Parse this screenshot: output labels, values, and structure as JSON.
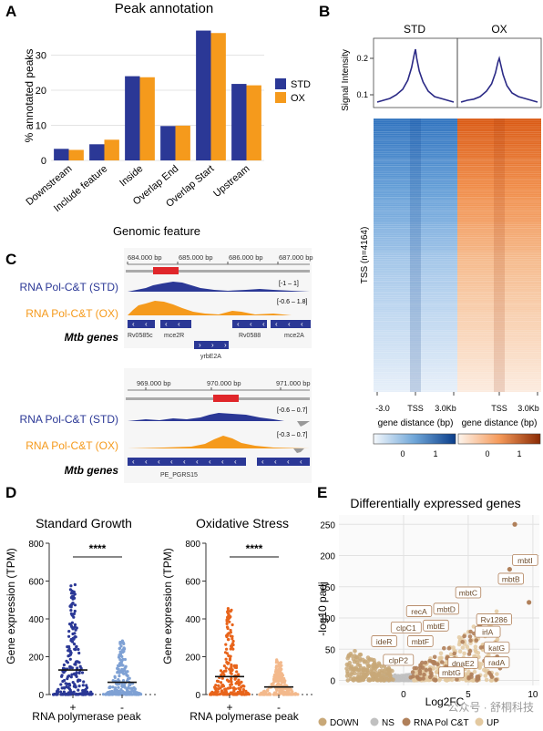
{
  "panels": [
    "A",
    "B",
    "C",
    "D",
    "E"
  ],
  "colors": {
    "std": "#2b3896",
    "ox": "#f59a1c",
    "std_light": "#7fa1d4",
    "ox_light": "#f3b98c",
    "ox_dark": "#e8641b",
    "down": "#c8a878",
    "ns": "#c0c0c0",
    "rnapol": "#b0805a",
    "up": "#e3c9a0",
    "red_box": "#e0262a"
  },
  "chart_data": [
    {
      "panel": "A",
      "type": "bar",
      "title": "Peak annotation",
      "xlabel": "Genomic feature",
      "ylabel": "% annotated peaks",
      "ylim": [
        0,
        40
      ],
      "yticks": [
        "0",
        "10",
        "20",
        "30"
      ],
      "yticks_num": [
        0,
        10,
        20,
        30
      ],
      "categories": [
        "Downstream",
        "Include feature",
        "Inside",
        "Overlap End",
        "Overlap Start",
        "Upstream"
      ],
      "series": [
        {
          "name": "STD",
          "values": [
            3.3,
            4.6,
            24.0,
            9.8,
            37.0,
            21.8
          ]
        },
        {
          "name": "OX",
          "values": [
            3.0,
            5.9,
            23.7,
            9.9,
            36.3,
            21.4
          ]
        }
      ],
      "legend": "right"
    },
    {
      "panel": "B",
      "type": "line",
      "ylabel": "Signal Intensity",
      "yticks": [
        "0.1",
        "0.2"
      ],
      "yticks_num": [
        0.1,
        0.2
      ],
      "ylim": [
        0.07,
        0.25
      ],
      "facets": [
        "STD",
        "OX"
      ],
      "heatmap_label": "TSS (n=4164)",
      "xticks": [
        "-3.0",
        "TSS",
        "3.0Kb"
      ],
      "xlabel": "gene distance (bp)",
      "colorbar_ticks": [
        "0",
        "1"
      ],
      "x": [
        -3.0,
        -2.5,
        -2.0,
        -1.5,
        -1.0,
        -0.6,
        -0.3,
        -0.1,
        0.0,
        0.1,
        0.3,
        0.6,
        1.0,
        1.5,
        2.0,
        2.5,
        3.0
      ],
      "series": [
        {
          "name": "STD",
          "values": [
            0.08,
            0.085,
            0.09,
            0.1,
            0.115,
            0.14,
            0.175,
            0.21,
            0.225,
            0.2,
            0.165,
            0.135,
            0.11,
            0.095,
            0.09,
            0.085,
            0.08
          ]
        },
        {
          "name": "OX",
          "values": [
            0.08,
            0.085,
            0.088,
            0.095,
            0.11,
            0.13,
            0.16,
            0.19,
            0.2,
            0.185,
            0.155,
            0.125,
            0.105,
            0.095,
            0.09,
            0.085,
            0.08
          ]
        }
      ]
    },
    {
      "panel": "D",
      "type": "scatter",
      "ylabel": "Gene expression (TPM)",
      "xlabel": "RNA polymerase peak",
      "yticks": [
        "0",
        "200",
        "400",
        "600",
        "800"
      ],
      "yticks_num": [
        0,
        200,
        400,
        600,
        800
      ],
      "ylim": [
        0,
        800
      ],
      "plots": [
        {
          "title": "Standard Growth",
          "groups": [
            "+",
            "-"
          ],
          "medians": [
            130,
            65
          ],
          "max": [
            590,
            285
          ],
          "significance": "****"
        },
        {
          "title": "Oxidative Stress",
          "groups": [
            "+",
            "-"
          ],
          "medians": [
            95,
            40
          ],
          "max": [
            460,
            185
          ],
          "significance": "****"
        }
      ]
    },
    {
      "panel": "E",
      "type": "scatter",
      "title": "Differentially expressed genes",
      "xlabel": "Log2FC",
      "ylabel": "-log10 padj",
      "xticks": [
        "0",
        "5",
        "10"
      ],
      "xticks_num": [
        0,
        5,
        10
      ],
      "yticks": [
        "0",
        "50",
        "100",
        "150",
        "200",
        "250"
      ],
      "yticks_num": [
        0,
        50,
        100,
        150,
        200,
        250
      ],
      "xlim": [
        -5,
        10.5
      ],
      "ylim": [
        -8,
        265
      ],
      "legend": [
        "DOWN",
        "NS",
        "RNA Pol C&T",
        "UP"
      ],
      "labels": [
        {
          "text": "mbtI",
          "x": 9.4,
          "y": 190
        },
        {
          "text": "mbtB",
          "x": 8.3,
          "y": 160
        },
        {
          "text": "mbtC",
          "x": 5.0,
          "y": 138
        },
        {
          "text": "Rv1286",
          "x": 7.0,
          "y": 95
        },
        {
          "text": "recA",
          "x": 1.2,
          "y": 108
        },
        {
          "text": "mbtD",
          "x": 3.3,
          "y": 112
        },
        {
          "text": "mbtE",
          "x": 2.5,
          "y": 85
        },
        {
          "text": "clpC1",
          "x": 0.2,
          "y": 82
        },
        {
          "text": "ideR",
          "x": -1.5,
          "y": 60
        },
        {
          "text": "mbtF",
          "x": 1.3,
          "y": 60
        },
        {
          "text": "irlA",
          "x": 6.5,
          "y": 75
        },
        {
          "text": "katG",
          "x": 7.2,
          "y": 50
        },
        {
          "text": "clpP2",
          "x": -0.4,
          "y": 30
        },
        {
          "text": "dnaE2",
          "x": 4.6,
          "y": 25
        },
        {
          "text": "mbtG",
          "x": 3.7,
          "y": 10
        },
        {
          "text": "radA",
          "x": 7.2,
          "y": 26
        }
      ]
    }
  ],
  "tracks": {
    "region1": {
      "ticks": [
        "684.000 bp",
        "685.000 bp",
        "686.000 bp",
        "687.000 bp"
      ],
      "ranges": [
        "[-1 – 1]",
        "[-0.6 – 1.8]"
      ],
      "genes": [
        "Rv0585c",
        "mce2R",
        "Rv0588",
        "mce2A",
        "yrbE2A"
      ]
    },
    "region2": {
      "ticks": [
        "969.000 bp",
        "970.000 bp",
        "971.000 bp"
      ],
      "ranges": [
        "[-0.6 – 0.7]",
        "[-0.3 – 0.7]"
      ],
      "genes": [
        "PE_PGRS15"
      ]
    },
    "track_labels": [
      "RNA Pol-C&T (STD)",
      "RNA Pol-C&T (OX)",
      "Mtb genes"
    ]
  },
  "watermark": "公众号 · 舒桐科技"
}
